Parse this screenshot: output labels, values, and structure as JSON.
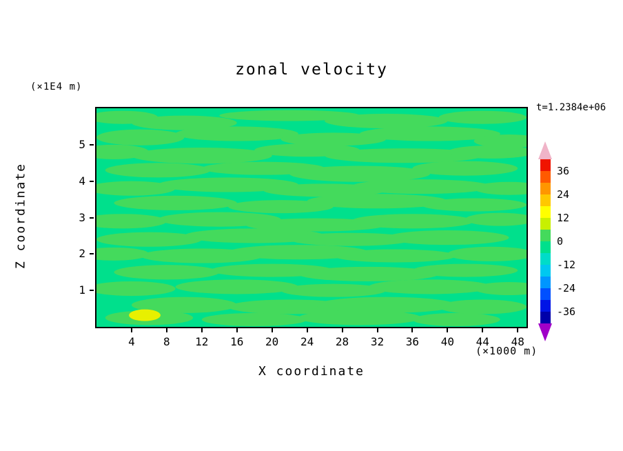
{
  "title": "zonal velocity",
  "time_label": "t=1.2384e+06",
  "axes": {
    "x": {
      "label": "X coordinate",
      "unit": "(×1000 m)",
      "ticks": [
        4,
        8,
        12,
        16,
        20,
        24,
        28,
        32,
        36,
        40,
        44,
        48
      ],
      "range": [
        0,
        49
      ]
    },
    "y": {
      "label": "Z coordinate",
      "unit": "(×1E4 m)",
      "ticks": [
        1,
        2,
        3,
        4,
        5
      ],
      "range": [
        0,
        6
      ]
    }
  },
  "colorbar": {
    "labels": [
      "36",
      "24",
      "12",
      "0",
      "-12",
      "-24",
      "-36"
    ],
    "segment_colors": [
      "#F01400",
      "#FF5A00",
      "#FF9600",
      "#FFC800",
      "#FFFF00",
      "#C8F000",
      "#44DA5C",
      "#00E08C",
      "#00DCC8",
      "#00C8F0",
      "#0096FF",
      "#0050FF",
      "#0014E6",
      "#0000AA"
    ],
    "top_arrow_color": "#F0B4C8",
    "bottom_arrow_color": "#A000C8"
  },
  "chart_data": {
    "type": "heatmap",
    "title": "zonal velocity",
    "xlabel": "X coordinate (×1000 m)",
    "ylabel": "Z coordinate (×1E4 m)",
    "time": "t=1.2384e+06",
    "x_range": [
      0,
      49
    ],
    "y_range": [
      0,
      6
    ],
    "contour_levels": [
      -42,
      -36,
      -30,
      -24,
      -18,
      -12,
      -6,
      0,
      6,
      12,
      18,
      24,
      30,
      36,
      42
    ],
    "background": {
      "color": "#00E08C",
      "level_band": [
        -6,
        0
      ]
    },
    "streaks": {
      "color": "#44DA5C",
      "level_band": [
        0,
        6
      ],
      "ellipses": [
        [
          3,
          5.75,
          4,
          0.18
        ],
        [
          10,
          5.6,
          6,
          0.2
        ],
        [
          22,
          5.8,
          8,
          0.15
        ],
        [
          33,
          5.65,
          7,
          0.2
        ],
        [
          44,
          5.75,
          5,
          0.18
        ],
        [
          5,
          5.2,
          5,
          0.22
        ],
        [
          16,
          5.3,
          7,
          0.2
        ],
        [
          27,
          5.15,
          6,
          0.18
        ],
        [
          38,
          5.3,
          8,
          0.2
        ],
        [
          47,
          5.1,
          4,
          0.18
        ],
        [
          2,
          4.8,
          4,
          0.2
        ],
        [
          12,
          4.7,
          8,
          0.22
        ],
        [
          24,
          4.85,
          6,
          0.18
        ],
        [
          35,
          4.7,
          9,
          0.2
        ],
        [
          45,
          4.8,
          5,
          0.18
        ],
        [
          7,
          4.3,
          6,
          0.2
        ],
        [
          19,
          4.35,
          7,
          0.18
        ],
        [
          30,
          4.2,
          8,
          0.22
        ],
        [
          42,
          4.35,
          6,
          0.2
        ],
        [
          4,
          3.8,
          5,
          0.2
        ],
        [
          15,
          3.9,
          8,
          0.2
        ],
        [
          26,
          3.75,
          7,
          0.18
        ],
        [
          37,
          3.85,
          8,
          0.2
        ],
        [
          47,
          3.8,
          4,
          0.18
        ],
        [
          9,
          3.4,
          7,
          0.2
        ],
        [
          21,
          3.3,
          6,
          0.18
        ],
        [
          32,
          3.45,
          8,
          0.2
        ],
        [
          43,
          3.35,
          6,
          0.18
        ],
        [
          3,
          2.9,
          5,
          0.2
        ],
        [
          14,
          2.95,
          7,
          0.2
        ],
        [
          25,
          2.8,
          8,
          0.18
        ],
        [
          36,
          2.9,
          7,
          0.2
        ],
        [
          46,
          2.95,
          4,
          0.18
        ],
        [
          6,
          2.4,
          6,
          0.2
        ],
        [
          18,
          2.5,
          8,
          0.2
        ],
        [
          29,
          2.4,
          7,
          0.18
        ],
        [
          40,
          2.45,
          7,
          0.2
        ],
        [
          2,
          2.0,
          4,
          0.18
        ],
        [
          12,
          1.95,
          7,
          0.2
        ],
        [
          23,
          2.05,
          8,
          0.2
        ],
        [
          34,
          1.95,
          7,
          0.18
        ],
        [
          45,
          2.0,
          5,
          0.2
        ],
        [
          8,
          1.5,
          6,
          0.2
        ],
        [
          20,
          1.55,
          7,
          0.18
        ],
        [
          31,
          1.45,
          8,
          0.2
        ],
        [
          42,
          1.55,
          6,
          0.18
        ],
        [
          4,
          1.05,
          5,
          0.2
        ],
        [
          16,
          1.1,
          7,
          0.2
        ],
        [
          27,
          1.0,
          6,
          0.18
        ],
        [
          38,
          1.1,
          7,
          0.2
        ],
        [
          47,
          1.05,
          4,
          0.18
        ],
        [
          10,
          0.6,
          6,
          0.22
        ],
        [
          22,
          0.55,
          7,
          0.2
        ],
        [
          33,
          0.6,
          8,
          0.22
        ],
        [
          44,
          0.55,
          5,
          0.2
        ],
        [
          6,
          0.25,
          5,
          0.2
        ],
        [
          18,
          0.2,
          6,
          0.18
        ],
        [
          30,
          0.25,
          7,
          0.2
        ],
        [
          41,
          0.2,
          5,
          0.18
        ]
      ]
    },
    "patches": [
      {
        "color": "#E8F000",
        "level_band": [
          6,
          12
        ],
        "ellipse": [
          5.5,
          0.32,
          1.8,
          0.16
        ]
      }
    ]
  }
}
